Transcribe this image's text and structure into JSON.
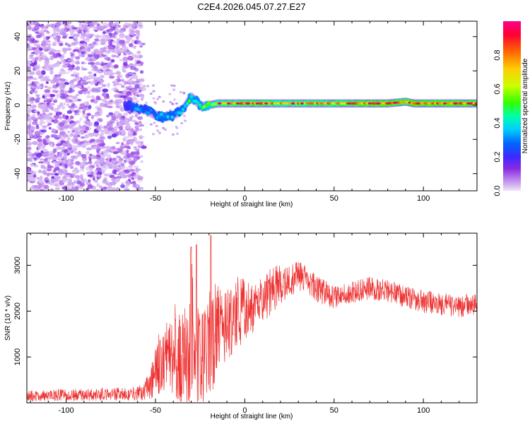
{
  "title": "C2E4.2026.045.07.27.E27",
  "top_panel": {
    "xlabel": "Height of straight line (km)",
    "ylabel": "Frequency (Hz)",
    "x_ticks": [
      "-100",
      "-50",
      "0",
      "50",
      "100"
    ],
    "y_ticks": [
      "40",
      "20",
      "0",
      "-20",
      "-40"
    ],
    "colorbar_label": "Normalized spectral amplitude",
    "colorbar_ticks": [
      "0.0",
      "0.2",
      "0.4",
      "0.6",
      "0.8"
    ]
  },
  "bottom_panel": {
    "xlabel": "Height of straight line (km)",
    "ylabel": "SNR (10 * v/v)",
    "x_ticks": [
      "-100",
      "-50",
      "0",
      "50",
      "100"
    ],
    "y_ticks": [
      "3000",
      "2000",
      "1000"
    ]
  },
  "chart_data": [
    {
      "type": "heatmap",
      "title": "C2E4.2026.045.07.27.E27",
      "xlabel": "Height of straight line (km)",
      "ylabel": "Frequency (Hz)",
      "xlim": [
        -122,
        130
      ],
      "ylim": [
        -50,
        49
      ],
      "x_ticks": [
        -100,
        -50,
        0,
        50,
        100
      ],
      "y_ticks": [
        -40,
        -20,
        0,
        20,
        40
      ],
      "colorbar": {
        "label": "Normalized spectral amplitude",
        "range": [
          0,
          1
        ],
        "ticks": [
          0.0,
          0.2,
          0.4,
          0.6,
          0.8
        ]
      },
      "noise_region_x": [
        -122,
        -56
      ],
      "ridge": {
        "x": [
          -67,
          -60,
          -55,
          -50,
          -45,
          -40,
          -35,
          -30,
          -27,
          -24,
          -20,
          -15,
          -10,
          -5,
          0,
          10,
          20,
          30,
          40,
          50,
          60,
          70,
          80,
          90,
          95,
          100,
          110,
          120,
          130
        ],
        "freq": [
          0,
          -2,
          -3,
          -6,
          -7,
          -6,
          -3,
          5,
          2,
          -1,
          0,
          1,
          1,
          1,
          1,
          1,
          1,
          1,
          1,
          1,
          1,
          1,
          1,
          2,
          1,
          1,
          1,
          1,
          1
        ],
        "amplitude": [
          0.2,
          0.35,
          0.3,
          0.35,
          0.4,
          0.35,
          0.4,
          0.5,
          0.45,
          0.5,
          0.6,
          0.75,
          0.8,
          0.8,
          0.85,
          0.85,
          0.75,
          0.8,
          0.8,
          0.8,
          0.85,
          0.9,
          0.92,
          0.85,
          0.95,
          0.9,
          0.9,
          0.9,
          0.9
        ]
      }
    },
    {
      "type": "line",
      "xlabel": "Height of straight line (km)",
      "ylabel": "SNR (10 * v/v)",
      "xlim": [
        -122,
        130
      ],
      "ylim": [
        0,
        3700
      ],
      "x_ticks": [
        -100,
        -50,
        0,
        50,
        100
      ],
      "y_ticks": [
        1000,
        2000,
        3000
      ],
      "color": "#ee3333",
      "envelope": {
        "x": [
          -122,
          -60,
          -55,
          -52,
          -48,
          -44,
          -40,
          -35,
          -32,
          -30,
          -28,
          -25,
          -22,
          -20,
          -18,
          -15,
          -10,
          -5,
          0,
          5,
          10,
          20,
          30,
          35,
          40,
          50,
          60,
          70,
          80,
          90,
          100,
          110,
          120,
          130
        ],
        "base": [
          150,
          200,
          300,
          500,
          800,
          900,
          1000,
          800,
          900,
          1400,
          700,
          900,
          1000,
          1200,
          1300,
          1500,
          1600,
          1800,
          1900,
          2000,
          2200,
          2500,
          2750,
          2700,
          2500,
          2300,
          2400,
          2500,
          2450,
          2300,
          2200,
          2150,
          2100,
          2150
        ],
        "spread": [
          120,
          150,
          250,
          400,
          600,
          700,
          900,
          900,
          1100,
          1800,
          900,
          1000,
          1100,
          1100,
          1200,
          900,
          800,
          700,
          600,
          500,
          450,
          400,
          350,
          300,
          300,
          250,
          250,
          250,
          250,
          250,
          250,
          250,
          250,
          250
        ]
      },
      "spikes": [
        {
          "x": -30,
          "y": 3400
        },
        {
          "x": -27,
          "y": 3450
        },
        {
          "x": -19,
          "y": 3650
        }
      ]
    }
  ]
}
